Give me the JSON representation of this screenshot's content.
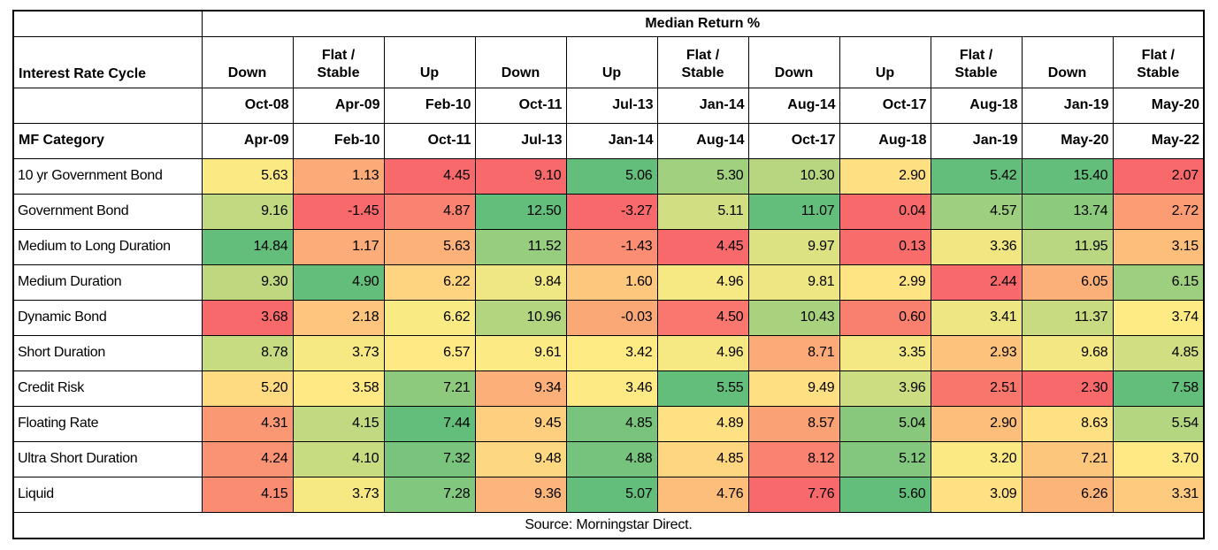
{
  "chart_data": {
    "type": "heatmap",
    "title": "Median Return %",
    "column_group_label": "Interest Rate Cycle",
    "row_group_label": "MF Category",
    "columns": [
      {
        "cycle": "Down",
        "period_start": "Oct-08",
        "period_end": "Apr-09"
      },
      {
        "cycle": "Flat /\nStable",
        "period_start": "Apr-09",
        "period_end": "Feb-10"
      },
      {
        "cycle": "Up",
        "period_start": "Feb-10",
        "period_end": "Oct-11"
      },
      {
        "cycle": "Down",
        "period_start": "Oct-11",
        "period_end": "Jul-13"
      },
      {
        "cycle": "Up",
        "period_start": "Jul-13",
        "period_end": "Jan-14"
      },
      {
        "cycle": "Flat /\nStable",
        "period_start": "Jan-14",
        "period_end": "Aug-14"
      },
      {
        "cycle": "Down",
        "period_start": "Aug-14",
        "period_end": "Oct-17"
      },
      {
        "cycle": "Up",
        "period_start": "Oct-17",
        "period_end": "Aug-18"
      },
      {
        "cycle": "Flat /\nStable",
        "period_start": "Aug-18",
        "period_end": "Jan-19"
      },
      {
        "cycle": "Down",
        "period_start": "Jan-19",
        "period_end": "May-20"
      },
      {
        "cycle": "Flat /\nStable",
        "period_start": "May-20",
        "period_end": "May-22"
      }
    ],
    "rows": [
      "10 yr Government Bond",
      "Government Bond",
      "Medium to Long Duration",
      "Medium Duration",
      "Dynamic Bond",
      "Short Duration",
      "Credit Risk",
      "Floating Rate",
      "Ultra Short Duration",
      "Liquid"
    ],
    "values": [
      [
        5.63,
        1.13,
        4.45,
        9.1,
        5.06,
        5.3,
        10.3,
        2.9,
        5.42,
        15.4,
        2.07
      ],
      [
        9.16,
        -1.45,
        4.87,
        12.5,
        -3.27,
        5.11,
        11.07,
        0.04,
        4.57,
        13.74,
        2.72
      ],
      [
        14.84,
        1.17,
        5.63,
        11.52,
        -1.43,
        4.45,
        9.97,
        0.13,
        3.36,
        11.95,
        3.15
      ],
      [
        9.3,
        4.9,
        6.22,
        9.84,
        1.6,
        4.96,
        9.81,
        2.99,
        2.44,
        6.05,
        6.15
      ],
      [
        3.68,
        2.18,
        6.62,
        10.96,
        -0.03,
        4.5,
        10.43,
        0.6,
        3.41,
        11.37,
        3.74
      ],
      [
        8.78,
        3.73,
        6.57,
        9.61,
        3.42,
        4.96,
        8.71,
        3.35,
        2.93,
        9.68,
        4.85
      ],
      [
        5.2,
        3.58,
        7.21,
        9.34,
        3.46,
        5.55,
        9.49,
        3.96,
        2.51,
        2.3,
        7.58
      ],
      [
        4.31,
        4.15,
        7.44,
        9.45,
        4.85,
        4.89,
        8.57,
        5.04,
        2.9,
        8.63,
        5.54
      ],
      [
        4.24,
        4.1,
        7.32,
        9.48,
        4.88,
        4.85,
        8.12,
        5.12,
        3.2,
        7.21,
        3.7
      ],
      [
        4.15,
        3.73,
        7.28,
        9.36,
        5.07,
        4.76,
        7.76,
        5.6,
        3.09,
        6.26,
        3.31
      ]
    ],
    "color_scale": {
      "min": "#F8696B",
      "mid": "#FFEB84",
      "max": "#63BE7B",
      "mode": "per-column",
      "midpoint": "median"
    },
    "grid": "on",
    "legend": "none",
    "source_note": "Source: Morningstar Direct."
  }
}
